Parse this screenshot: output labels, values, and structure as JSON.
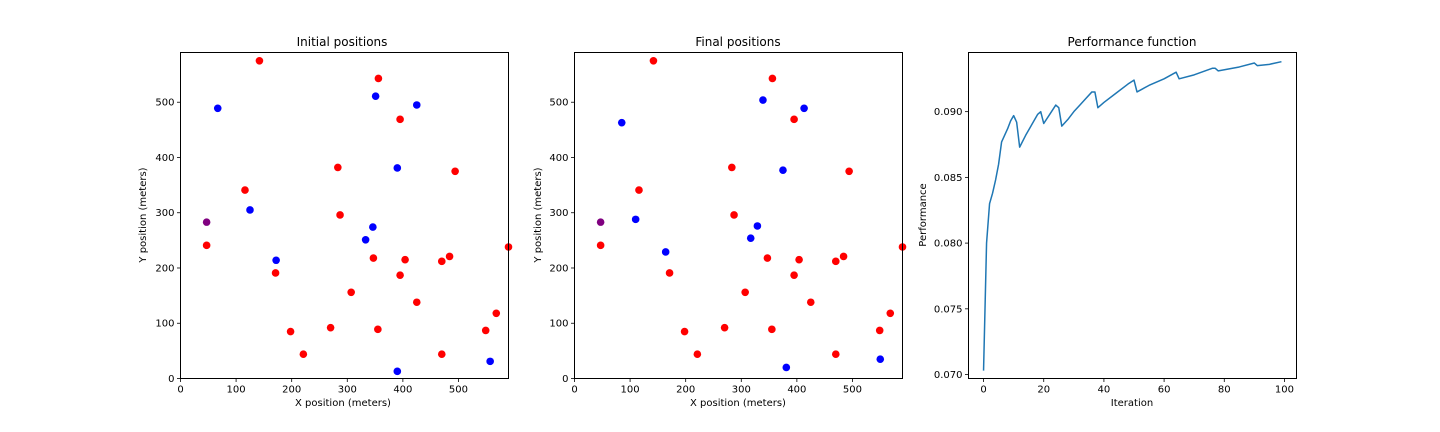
{
  "chart_data": [
    {
      "type": "scatter",
      "title": "Initial positions",
      "xlabel": "X position (meters)",
      "ylabel": "Y position (meters)",
      "xlim": [
        0,
        590
      ],
      "ylim": [
        0,
        590
      ],
      "xticks": [
        0,
        100,
        200,
        300,
        400,
        500
      ],
      "yticks": [
        0,
        100,
        200,
        300,
        400,
        500
      ],
      "grid": false,
      "colors": {
        "red": "#ff0000",
        "blue": "#0000ff",
        "purple": "#800080"
      },
      "points": [
        {
          "x": 47,
          "y": 283,
          "color": "purple"
        },
        {
          "x": 47,
          "y": 241,
          "color": "red"
        },
        {
          "x": 142,
          "y": 575,
          "color": "red"
        },
        {
          "x": 356,
          "y": 543,
          "color": "red"
        },
        {
          "x": 395,
          "y": 469,
          "color": "red"
        },
        {
          "x": 494,
          "y": 375,
          "color": "red"
        },
        {
          "x": 283,
          "y": 382,
          "color": "red"
        },
        {
          "x": 116,
          "y": 341,
          "color": "red"
        },
        {
          "x": 287,
          "y": 296,
          "color": "red"
        },
        {
          "x": 347,
          "y": 218,
          "color": "red"
        },
        {
          "x": 404,
          "y": 215,
          "color": "red"
        },
        {
          "x": 470,
          "y": 212,
          "color": "red"
        },
        {
          "x": 484,
          "y": 221,
          "color": "red"
        },
        {
          "x": 590,
          "y": 238,
          "color": "red"
        },
        {
          "x": 171,
          "y": 191,
          "color": "red"
        },
        {
          "x": 395,
          "y": 187,
          "color": "red"
        },
        {
          "x": 307,
          "y": 156,
          "color": "red"
        },
        {
          "x": 425,
          "y": 138,
          "color": "red"
        },
        {
          "x": 198,
          "y": 85,
          "color": "red"
        },
        {
          "x": 270,
          "y": 92,
          "color": "red"
        },
        {
          "x": 355,
          "y": 89,
          "color": "red"
        },
        {
          "x": 549,
          "y": 87,
          "color": "red"
        },
        {
          "x": 568,
          "y": 118,
          "color": "red"
        },
        {
          "x": 221,
          "y": 44,
          "color": "red"
        },
        {
          "x": 470,
          "y": 44,
          "color": "red"
        },
        {
          "x": 67,
          "y": 489,
          "color": "blue"
        },
        {
          "x": 351,
          "y": 511,
          "color": "blue"
        },
        {
          "x": 425,
          "y": 495,
          "color": "blue"
        },
        {
          "x": 390,
          "y": 381,
          "color": "blue"
        },
        {
          "x": 125,
          "y": 305,
          "color": "blue"
        },
        {
          "x": 346,
          "y": 274,
          "color": "blue"
        },
        {
          "x": 333,
          "y": 251,
          "color": "blue"
        },
        {
          "x": 172,
          "y": 214,
          "color": "blue"
        },
        {
          "x": 557,
          "y": 31,
          "color": "blue"
        },
        {
          "x": 390,
          "y": 13,
          "color": "blue"
        }
      ]
    },
    {
      "type": "scatter",
      "title": "Final positions",
      "xlabel": "X position (meters)",
      "ylabel": "Y position (meters)",
      "xlim": [
        0,
        590
      ],
      "ylim": [
        0,
        590
      ],
      "xticks": [
        0,
        100,
        200,
        300,
        400,
        500
      ],
      "yticks": [
        0,
        100,
        200,
        300,
        400,
        500
      ],
      "grid": false,
      "colors": {
        "red": "#ff0000",
        "blue": "#0000ff",
        "purple": "#800080"
      },
      "points": [
        {
          "x": 47,
          "y": 283,
          "color": "purple"
        },
        {
          "x": 47,
          "y": 241,
          "color": "red"
        },
        {
          "x": 142,
          "y": 575,
          "color": "red"
        },
        {
          "x": 356,
          "y": 543,
          "color": "red"
        },
        {
          "x": 395,
          "y": 469,
          "color": "red"
        },
        {
          "x": 494,
          "y": 375,
          "color": "red"
        },
        {
          "x": 283,
          "y": 382,
          "color": "red"
        },
        {
          "x": 116,
          "y": 341,
          "color": "red"
        },
        {
          "x": 287,
          "y": 296,
          "color": "red"
        },
        {
          "x": 347,
          "y": 218,
          "color": "red"
        },
        {
          "x": 404,
          "y": 215,
          "color": "red"
        },
        {
          "x": 470,
          "y": 212,
          "color": "red"
        },
        {
          "x": 484,
          "y": 221,
          "color": "red"
        },
        {
          "x": 590,
          "y": 238,
          "color": "red"
        },
        {
          "x": 171,
          "y": 191,
          "color": "red"
        },
        {
          "x": 395,
          "y": 187,
          "color": "red"
        },
        {
          "x": 307,
          "y": 156,
          "color": "red"
        },
        {
          "x": 425,
          "y": 138,
          "color": "red"
        },
        {
          "x": 198,
          "y": 85,
          "color": "red"
        },
        {
          "x": 270,
          "y": 92,
          "color": "red"
        },
        {
          "x": 355,
          "y": 89,
          "color": "red"
        },
        {
          "x": 549,
          "y": 87,
          "color": "red"
        },
        {
          "x": 568,
          "y": 118,
          "color": "red"
        },
        {
          "x": 221,
          "y": 44,
          "color": "red"
        },
        {
          "x": 470,
          "y": 44,
          "color": "red"
        },
        {
          "x": 85,
          "y": 463,
          "color": "blue"
        },
        {
          "x": 339,
          "y": 504,
          "color": "blue"
        },
        {
          "x": 413,
          "y": 489,
          "color": "blue"
        },
        {
          "x": 375,
          "y": 377,
          "color": "blue"
        },
        {
          "x": 110,
          "y": 288,
          "color": "blue"
        },
        {
          "x": 329,
          "y": 276,
          "color": "blue"
        },
        {
          "x": 317,
          "y": 254,
          "color": "blue"
        },
        {
          "x": 164,
          "y": 229,
          "color": "blue"
        },
        {
          "x": 550,
          "y": 35,
          "color": "blue"
        },
        {
          "x": 381,
          "y": 20,
          "color": "blue"
        }
      ]
    },
    {
      "type": "line",
      "title": "Performance function",
      "xlabel": "Iteration",
      "ylabel": "Performance",
      "xlim": [
        -5,
        104
      ],
      "ylim": [
        0.0697,
        0.0945
      ],
      "xticks": [
        0,
        20,
        40,
        60,
        80,
        100
      ],
      "yticks": [
        0.07,
        0.075,
        0.08,
        0.085,
        0.09
      ],
      "ytick_labels": [
        "0.070",
        "0.075",
        "0.080",
        "0.085",
        "0.090"
      ],
      "grid": false,
      "colors": {
        "line": "#1f77b4"
      },
      "series": [
        {
          "x": [
            0,
            1,
            2,
            3,
            4,
            5,
            6,
            7,
            8,
            9,
            10,
            11,
            12,
            14,
            16,
            18,
            19,
            20,
            22,
            24,
            25,
            26,
            28,
            30,
            32,
            34,
            36,
            37,
            38,
            40,
            44,
            48,
            50,
            51,
            55,
            60,
            64,
            65,
            70,
            76,
            77,
            78,
            85,
            90,
            91,
            95,
            99
          ],
          "y": [
            0.0703,
            0.08,
            0.083,
            0.0838,
            0.0848,
            0.086,
            0.0877,
            0.0882,
            0.0887,
            0.0893,
            0.0897,
            0.0892,
            0.0873,
            0.0882,
            0.089,
            0.0898,
            0.09,
            0.0891,
            0.0898,
            0.0905,
            0.0903,
            0.0889,
            0.0894,
            0.09,
            0.0905,
            0.091,
            0.0915,
            0.0915,
            0.0903,
            0.0907,
            0.0914,
            0.0921,
            0.0924,
            0.0915,
            0.092,
            0.0925,
            0.093,
            0.0925,
            0.0928,
            0.0933,
            0.0933,
            0.0931,
            0.0934,
            0.0937,
            0.0935,
            0.0936,
            0.0938
          ]
        }
      ]
    }
  ]
}
